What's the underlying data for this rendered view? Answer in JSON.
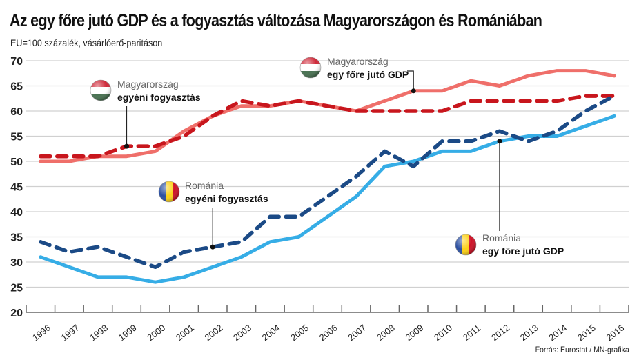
{
  "chart_data": {
    "type": "line",
    "title": "Az egy főre jutó GDP és a fogyasztás változása Magyarországon és Romániában",
    "subtitle": "EU=100 százalék, vásárlóerő-paritáson",
    "source": "Forrás: Eurostat / MN-grafika",
    "xlabel": "",
    "ylabel": "",
    "ylim": [
      20,
      70
    ],
    "yticks": [
      20,
      25,
      30,
      35,
      40,
      45,
      50,
      55,
      60,
      65,
      70
    ],
    "grid": true,
    "x": [
      "1996",
      "1997",
      "1998",
      "1999",
      "2000",
      "2001",
      "2002",
      "2003",
      "2004",
      "2005",
      "2006",
      "2007",
      "2008",
      "2009",
      "2010",
      "2011",
      "2012",
      "2013",
      "2014",
      "2015",
      "2016"
    ],
    "series": [
      {
        "id": "hu-gdp",
        "name": "Magyarország egy főre jutó GDP",
        "country": "Magyarország",
        "metric": "egy főre jutó GDP",
        "style": "solid",
        "color": "#ef6f6a",
        "values": [
          50,
          50,
          51,
          51,
          52,
          56,
          59,
          61,
          61,
          62,
          61,
          60,
          62,
          64,
          64,
          66,
          65,
          67,
          68,
          68,
          67
        ]
      },
      {
        "id": "hu-cons",
        "name": "Magyarország egyéni fogyasztás",
        "country": "Magyarország",
        "metric": "egyéni fogyasztás",
        "style": "dashed",
        "color": "#c8161d",
        "values": [
          51,
          51,
          51,
          53,
          53,
          55,
          59,
          62,
          61,
          62,
          61,
          60,
          60,
          60,
          60,
          62,
          62,
          62,
          62,
          63,
          63
        ]
      },
      {
        "id": "ro-gdp",
        "name": "Románia egy főre jutó GDP",
        "country": "Románia",
        "metric": "egy főre jutó GDP",
        "style": "solid",
        "color": "#36ade6",
        "values": [
          31,
          29,
          27,
          27,
          26,
          27,
          29,
          31,
          34,
          35,
          39,
          43,
          49,
          50,
          52,
          52,
          54,
          55,
          55,
          57,
          59
        ]
      },
      {
        "id": "ro-cons",
        "name": "Románia egyéni fogyasztás",
        "country": "Románia",
        "metric": "egyéni fogyasztás",
        "style": "dashed",
        "color": "#1b4a86",
        "values": [
          34,
          32,
          33,
          31,
          29,
          32,
          33,
          34,
          39,
          39,
          43,
          47,
          52,
          49,
          54,
          54,
          56,
          54,
          56,
          60,
          63
        ]
      }
    ],
    "annotations": [
      {
        "series": "hu-cons",
        "line1": "Magyarország",
        "line2": "egyéni fogyasztás",
        "flag": "hungary",
        "point_year": "1999"
      },
      {
        "series": "hu-gdp",
        "line1": "Magyarország",
        "line2": "egy főre jutó GDP",
        "flag": "hungary",
        "point_year": "2009"
      },
      {
        "series": "ro-cons",
        "line1": "Románia",
        "line2": "egyéni fogyasztás",
        "flag": "romania",
        "point_year": "2002"
      },
      {
        "series": "ro-gdp",
        "line1": "Románia",
        "line2": "egy főre jutó GDP",
        "flag": "romania",
        "point_year": "2012"
      }
    ]
  }
}
